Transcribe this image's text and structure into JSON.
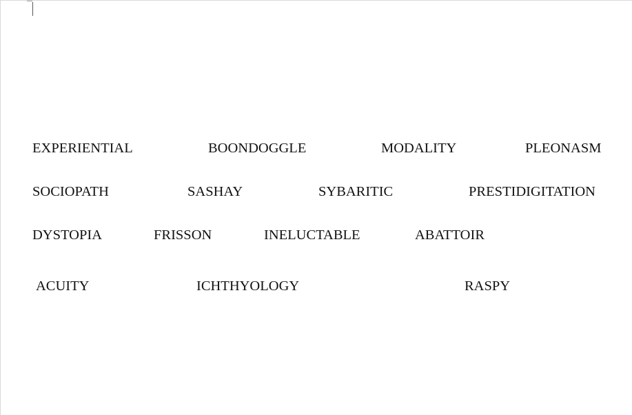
{
  "document": {
    "rows": [
      [
        "EXPERIENTIAL",
        "BOONDOGGLE",
        "MODALITY",
        "PLEONASM"
      ],
      [
        "SOCIOPATH",
        "SASHAY",
        "SYBARITIC",
        "PRESTIDIGITATION"
      ],
      [
        "DYSTOPIA",
        "FRISSON",
        "INELUCTABLE",
        "ABATTOIR"
      ],
      [
        "ACUITY",
        "ICHTHYOLOGY",
        "RASPY"
      ]
    ]
  }
}
